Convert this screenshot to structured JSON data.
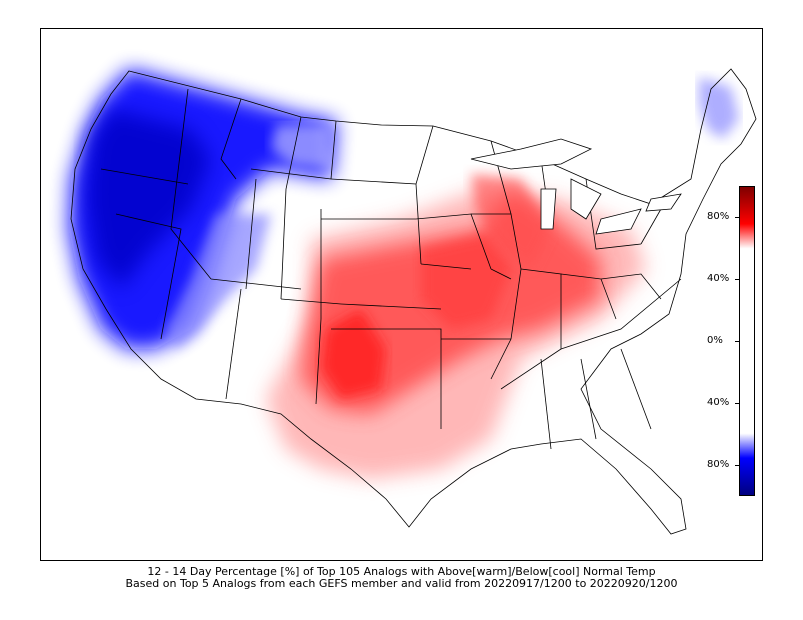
{
  "map": {
    "title_line1": "12 - 14 Day Percentage [%] of Top 105 Analogs with Above[warm]/Below[cool] Normal Temp",
    "title_line2": "Based on Top 5 Analogs from each GEFS member and valid from 20220917/1200 to 20220920/1200",
    "region": "Contiguous United States",
    "colors": {
      "warm": "#ff0000",
      "cool": "#0000ff",
      "warm_dark": "#7f0000",
      "cool_dark": "#00007f",
      "neutral": "#ffffff",
      "border": "#000000"
    }
  },
  "colorbar": {
    "ticks": [
      {
        "label": "80%",
        "value": 80
      },
      {
        "label": "40%",
        "value": 40
      },
      {
        "label": "0%",
        "value": 0
      },
      {
        "label": "40%",
        "value": -40
      },
      {
        "label": "80%",
        "value": -80
      }
    ]
  }
}
